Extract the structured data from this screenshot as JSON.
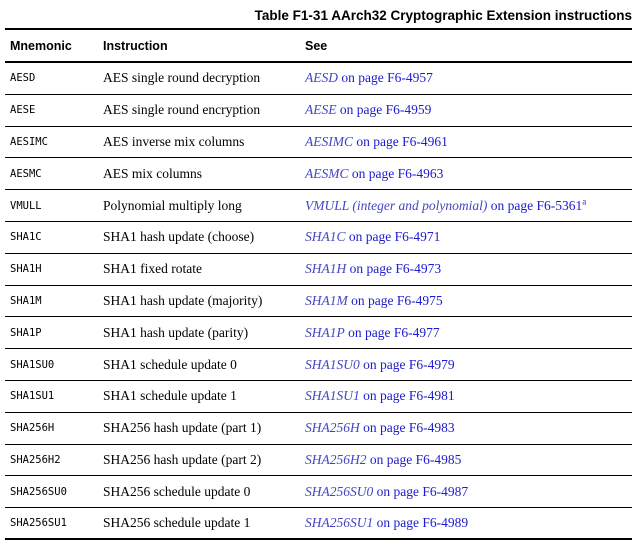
{
  "header": {
    "title": "Table F1-31 AArch32 Cryptographic Extension instructions"
  },
  "table": {
    "columns": [
      "Mnemonic",
      "Instruction",
      "See"
    ],
    "rows": [
      {
        "mnemonic": "AESD",
        "instruction": "AES single round decryption",
        "see_ref": "AESD",
        "see_rest": " on page F6-4957",
        "see_sup": ""
      },
      {
        "mnemonic": "AESE",
        "instruction": "AES single round encryption",
        "see_ref": "AESE",
        "see_rest": " on page F6-4959",
        "see_sup": ""
      },
      {
        "mnemonic": "AESIMC",
        "instruction": "AES inverse mix columns",
        "see_ref": "AESIMC",
        "see_rest": " on page F6-4961",
        "see_sup": ""
      },
      {
        "mnemonic": "AESMC",
        "instruction": "AES mix columns",
        "see_ref": "AESMC",
        "see_rest": " on page F6-4963",
        "see_sup": ""
      },
      {
        "mnemonic": "VMULL",
        "instruction": "Polynomial multiply long",
        "see_ref": "VMULL (integer and polynomial)",
        "see_rest": " on page F6-5361",
        "see_sup": "a"
      },
      {
        "mnemonic": "SHA1C",
        "instruction": "SHA1 hash update (choose)",
        "see_ref": "SHA1C",
        "see_rest": " on page F6-4971",
        "see_sup": ""
      },
      {
        "mnemonic": "SHA1H",
        "instruction": "SHA1 fixed rotate",
        "see_ref": "SHA1H",
        "see_rest": " on page F6-4973",
        "see_sup": ""
      },
      {
        "mnemonic": "SHA1M",
        "instruction": "SHA1 hash update (majority)",
        "see_ref": "SHA1M",
        "see_rest": " on page F6-4975",
        "see_sup": ""
      },
      {
        "mnemonic": "SHA1P",
        "instruction": "SHA1 hash update (parity)",
        "see_ref": "SHA1P",
        "see_rest": " on page F6-4977",
        "see_sup": ""
      },
      {
        "mnemonic": "SHA1SU0",
        "instruction": "SHA1 schedule update 0",
        "see_ref": "SHA1SU0",
        "see_rest": " on page F6-4979",
        "see_sup": ""
      },
      {
        "mnemonic": "SHA1SU1",
        "instruction": "SHA1 schedule update 1",
        "see_ref": "SHA1SU1",
        "see_rest": " on page F6-4981",
        "see_sup": ""
      },
      {
        "mnemonic": "SHA256H",
        "instruction": "SHA256 hash update (part 1)",
        "see_ref": "SHA256H",
        "see_rest": " on page F6-4983",
        "see_sup": ""
      },
      {
        "mnemonic": "SHA256H2",
        "instruction": "SHA256 hash update (part 2)",
        "see_ref": "SHA256H2",
        "see_rest": " on page F6-4985",
        "see_sup": ""
      },
      {
        "mnemonic": "SHA256SU0",
        "instruction": "SHA256 schedule update 0",
        "see_ref": "SHA256SU0",
        "see_rest": " on page F6-4987",
        "see_sup": ""
      },
      {
        "mnemonic": "SHA256SU1",
        "instruction": "SHA256 schedule update 1",
        "see_ref": "SHA256SU1",
        "see_rest": " on page F6-4989",
        "see_sup": ""
      }
    ]
  },
  "colors": {
    "text": "#000000",
    "rule": "#000000",
    "link_ref": "#4545c4",
    "link_body": "#1b1bcf"
  }
}
